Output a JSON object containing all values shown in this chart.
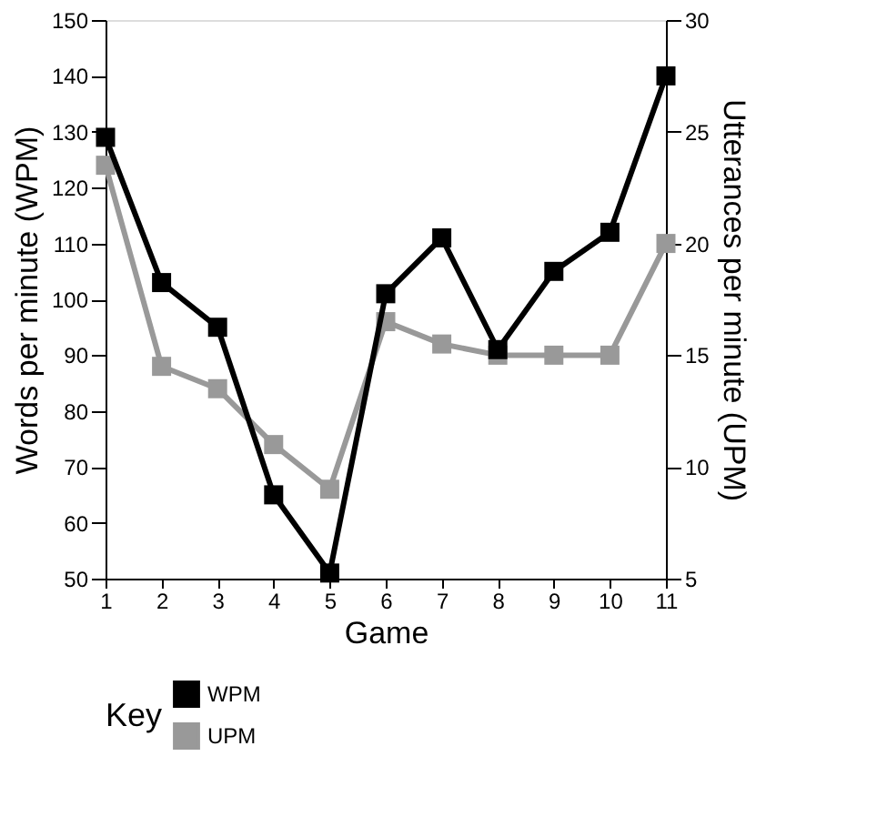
{
  "chart_data": {
    "type": "line",
    "xlabel": "Game",
    "ylabel": "Words per minute (WPM)",
    "y2label": "Utterances per minute (UPM)",
    "legend_title": "Key",
    "x": [
      1,
      2,
      3,
      4,
      5,
      6,
      7,
      8,
      9,
      10,
      11
    ],
    "series": [
      {
        "name": "WPM",
        "color": "#000000",
        "values": [
          129,
          103,
          95,
          65,
          51,
          101,
          111,
          91,
          105,
          112,
          140
        ]
      },
      {
        "name": "UPM",
        "color": "#999999",
        "axis": "y2",
        "values": [
          23.5,
          14.5,
          13.5,
          11,
          9,
          16.5,
          15.5,
          15,
          15,
          15,
          20
        ]
      }
    ],
    "xlim": [
      1,
      11
    ],
    "xticks": [
      1,
      2,
      3,
      4,
      5,
      6,
      7,
      8,
      9,
      10,
      11
    ],
    "ylim": [
      50,
      150
    ],
    "yticks": [
      50,
      60,
      70,
      80,
      90,
      100,
      110,
      120,
      130,
      140,
      150
    ],
    "y2lim": [
      5,
      30
    ],
    "y2ticks": [
      5,
      10,
      15,
      20,
      25,
      30
    ],
    "grid": false,
    "legend": "bottom left",
    "marker": "square",
    "line_style": "solid"
  }
}
